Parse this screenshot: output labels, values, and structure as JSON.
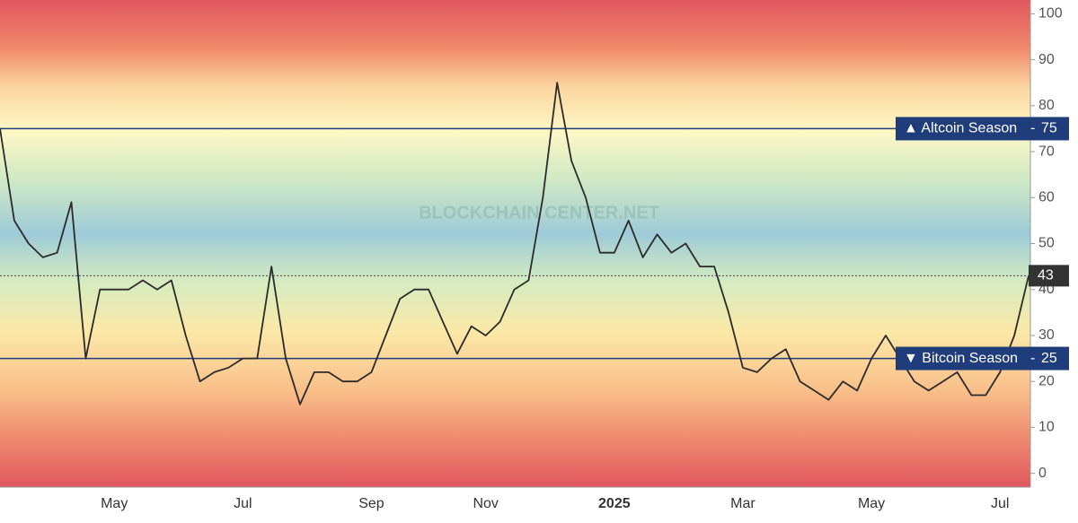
{
  "chart_data": {
    "type": "line",
    "watermark": "BLOCKCHAIN CENTER.NET",
    "categories": [
      null,
      null,
      null,
      null,
      null,
      null,
      null,
      null,
      "May",
      null,
      null,
      null,
      null,
      null,
      null,
      null,
      null,
      "Jul",
      null,
      null,
      null,
      null,
      null,
      null,
      null,
      null,
      "Sep",
      null,
      null,
      null,
      null,
      null,
      null,
      null,
      "Nov",
      null,
      null,
      null,
      null,
      null,
      null,
      null,
      null,
      "2025",
      null,
      null,
      null,
      null,
      null,
      null,
      null,
      null,
      "Mar",
      null,
      null,
      null,
      null,
      null,
      null,
      null,
      null,
      "May",
      null,
      null,
      null,
      null,
      null,
      null,
      null,
      null,
      "Jul",
      null,
      null
    ],
    "values": [
      75,
      55,
      50,
      47,
      48,
      59,
      25,
      40,
      40,
      40,
      42,
      40,
      42,
      30,
      20,
      22,
      23,
      25,
      25,
      45,
      25,
      15,
      22,
      22,
      20,
      20,
      22,
      30,
      38,
      40,
      40,
      33,
      26,
      32,
      30,
      33,
      40,
      42,
      60,
      85,
      68,
      60,
      48,
      48,
      55,
      47,
      52,
      48,
      50,
      45,
      45,
      35,
      23,
      22,
      25,
      27,
      20,
      18,
      16,
      20,
      18,
      25,
      30,
      25,
      20,
      18,
      20,
      22,
      17,
      17,
      22,
      30,
      43
    ],
    "color": "#2b2b2b",
    "ylim": [
      -3,
      103
    ],
    "yticks": [
      0,
      10,
      20,
      30,
      40,
      50,
      60,
      70,
      80,
      90,
      100
    ],
    "thresholds": [
      {
        "label": "▲ Altcoin Season",
        "value": 75,
        "color": "#1f3d7a"
      },
      {
        "label": "▼ Bitcoin Season",
        "value": 25,
        "color": "#1f3d7a"
      }
    ]
  }
}
